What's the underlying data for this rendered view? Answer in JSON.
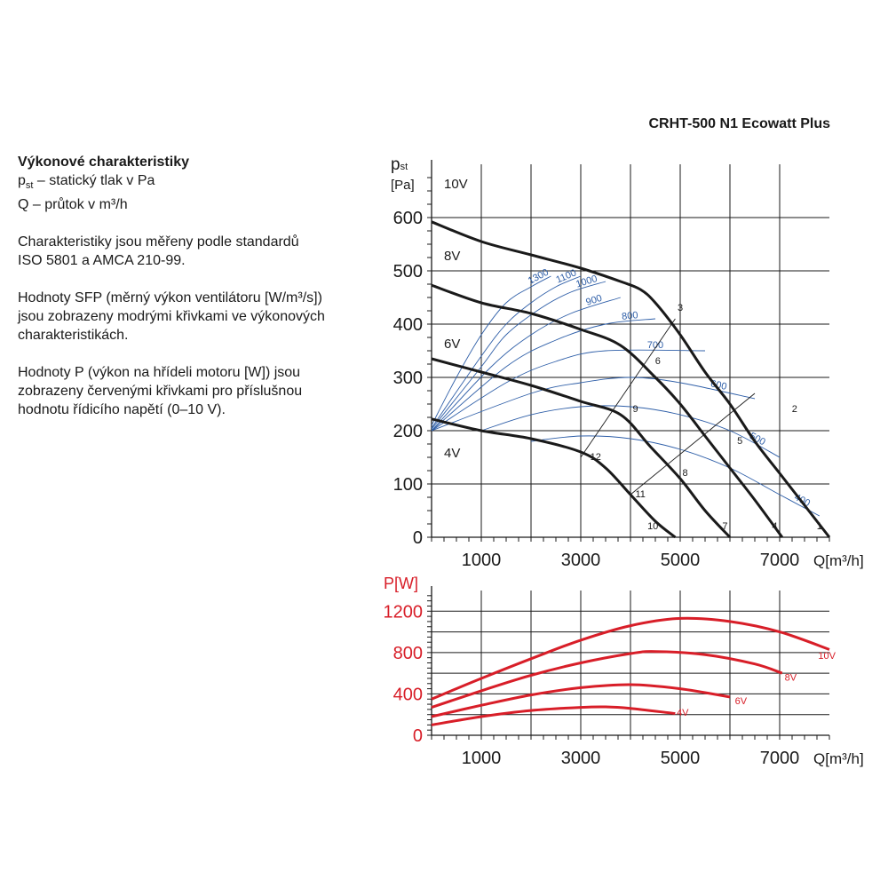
{
  "header": {
    "product_name": "CRHT-500 N1 Ecowatt Plus"
  },
  "description": {
    "title": "Výkonové charakteristiky",
    "pst_symbol": "p",
    "pst_sub": "st",
    "pst_text": " – statický tlak v Pa",
    "q_text": "Q – průtok v m³/h",
    "paragraph1_line1": "Charakteristiky jsou měřeny podle standardů",
    "paragraph1_line2": "ISO 5801 a AMCA 210-99.",
    "paragraph2_line1": "Hodnoty SFP (měrný výkon ventilátoru [W/m³/s])",
    "paragraph2_line2": "jsou zobrazeny modrými křivkami ve výkonových",
    "paragraph2_line3": "charakteristikách.",
    "paragraph3_line1": "Hodnoty P (výkon na hřídeli motoru [W]) jsou",
    "paragraph3_line2": "zobrazeny červenými křivkami pro příslušnou",
    "paragraph3_line3": "hodnotu řídicího napětí (0–10 V)."
  },
  "colors": {
    "pressure_curve": "#1a1a1a",
    "sfp_curve": "#2f5fa8",
    "power_curve": "#d81e28",
    "grid": "#1a1a1a"
  },
  "chart_data": [
    {
      "type": "line",
      "name": "pressure",
      "ylabel_symbol": "p",
      "ylabel_sub": "st",
      "yunit": "[Pa]",
      "xlabel": "Q[m³/h]",
      "xlim": [
        0,
        8000
      ],
      "ylim": [
        0,
        700
      ],
      "x_ticks": [
        1000,
        3000,
        5000,
        7000
      ],
      "y_ticks": [
        0,
        100,
        200,
        300,
        400,
        500,
        600
      ],
      "grid": true,
      "series": [
        {
          "name": "10V",
          "points": [
            [
              0,
              592
            ],
            [
              1000,
              555
            ],
            [
              2000,
              530
            ],
            [
              3000,
              505
            ],
            [
              3800,
              480
            ],
            [
              4200,
              465
            ],
            [
              4500,
              440
            ],
            [
              5000,
              380
            ],
            [
              5500,
              310
            ],
            [
              6000,
              250
            ],
            [
              6500,
              180
            ],
            [
              7000,
              120
            ],
            [
              7500,
              60
            ],
            [
              8000,
              0
            ]
          ]
        },
        {
          "name": "8V",
          "points": [
            [
              0,
              473
            ],
            [
              1000,
              440
            ],
            [
              2000,
              420
            ],
            [
              3000,
              390
            ],
            [
              3800,
              360
            ],
            [
              4500,
              300
            ],
            [
              5000,
              250
            ],
            [
              5500,
              190
            ],
            [
              6000,
              130
            ],
            [
              6500,
              70
            ],
            [
              7050,
              0
            ]
          ]
        },
        {
          "name": "6V",
          "points": [
            [
              0,
              335
            ],
            [
              1000,
              310
            ],
            [
              2000,
              285
            ],
            [
              3000,
              255
            ],
            [
              3800,
              230
            ],
            [
              4400,
              170
            ],
            [
              5000,
              110
            ],
            [
              5500,
              50
            ],
            [
              6000,
              0
            ]
          ]
        },
        {
          "name": "4V",
          "points": [
            [
              0,
              222
            ],
            [
              1000,
              200
            ],
            [
              2000,
              185
            ],
            [
              3000,
              160
            ],
            [
              3500,
              130
            ],
            [
              4000,
              80
            ],
            [
              4500,
              30
            ],
            [
              4900,
              0
            ]
          ]
        }
      ],
      "sfp_lines": [
        {
          "label": "1300",
          "points": [
            [
              0,
              210
            ],
            [
              500,
              300
            ],
            [
              1000,
              380
            ],
            [
              1500,
              440
            ],
            [
              2000,
              470
            ],
            [
              2400,
              490
            ]
          ]
        },
        {
          "label": "1100",
          "points": [
            [
              0,
              205
            ],
            [
              1000,
              340
            ],
            [
              1500,
              400
            ],
            [
              2000,
              440
            ],
            [
              2500,
              470
            ],
            [
              3000,
              490
            ]
          ]
        },
        {
          "label": "1000",
          "points": [
            [
              0,
              203
            ],
            [
              1000,
              320
            ],
            [
              1500,
              380
            ],
            [
              2200,
              430
            ],
            [
              2800,
              460
            ],
            [
              3500,
              480
            ]
          ]
        },
        {
          "label": "900",
          "points": [
            [
              0,
              200
            ],
            [
              1200,
              320
            ],
            [
              2000,
              380
            ],
            [
              2800,
              420
            ],
            [
              3800,
              450
            ]
          ]
        },
        {
          "label": "800",
          "points": [
            [
              0,
              200
            ],
            [
              1500,
              320
            ],
            [
              2500,
              370
            ],
            [
              3500,
              400
            ],
            [
              4500,
              410
            ]
          ]
        },
        {
          "label": "700",
          "points": [
            [
              0,
              200
            ],
            [
              1500,
              290
            ],
            [
              2500,
              330
            ],
            [
              3500,
              350
            ],
            [
              5500,
              350
            ]
          ]
        },
        {
          "label": "600",
          "points": [
            [
              0,
              200
            ],
            [
              2000,
              270
            ],
            [
              3000,
              290
            ],
            [
              4000,
              300
            ],
            [
              5000,
              290
            ],
            [
              6500,
              260
            ]
          ]
        },
        {
          "label": "500",
          "points": [
            [
              1000,
              200
            ],
            [
              2000,
              230
            ],
            [
              3000,
              245
            ],
            [
              4000,
              245
            ],
            [
              5000,
              230
            ],
            [
              6000,
              200
            ],
            [
              7000,
              150
            ]
          ]
        },
        {
          "label": "400",
          "points": [
            [
              2000,
              180
            ],
            [
              3000,
              190
            ],
            [
              4000,
              185
            ],
            [
              5000,
              165
            ],
            [
              6000,
              130
            ],
            [
              7000,
              80
            ],
            [
              7800,
              40
            ]
          ]
        }
      ],
      "system_lines": [
        {
          "points": [
            [
              3000,
              150
            ],
            [
              4900,
              410
            ]
          ]
        },
        {
          "points": [
            [
              4000,
              80
            ],
            [
              6500,
              270
            ]
          ]
        }
      ],
      "curve_labels": [
        {
          "text": "10V",
          "q": 250,
          "p": 655
        },
        {
          "text": "8V",
          "q": 250,
          "p": 520
        },
        {
          "text": "6V",
          "q": 250,
          "p": 355
        },
        {
          "text": "4V",
          "q": 250,
          "p": 150
        }
      ],
      "point_labels": [
        {
          "text": "1",
          "q": 7800,
          "p": 15
        },
        {
          "text": "2",
          "q": 7300,
          "p": 235
        },
        {
          "text": "3",
          "q": 5000,
          "p": 425
        },
        {
          "text": "4",
          "q": 6900,
          "p": 15
        },
        {
          "text": "5",
          "q": 6200,
          "p": 175
        },
        {
          "text": "6",
          "q": 4550,
          "p": 325
        },
        {
          "text": "7",
          "q": 5900,
          "p": 15
        },
        {
          "text": "8",
          "q": 5100,
          "p": 115
        },
        {
          "text": "9",
          "q": 4100,
          "p": 235
        },
        {
          "text": "10",
          "q": 4450,
          "p": 15
        },
        {
          "text": "11",
          "q": 4200,
          "p": 75
        },
        {
          "text": "12",
          "q": 3300,
          "p": 145
        }
      ]
    },
    {
      "type": "line",
      "name": "power",
      "ylabel": "P[W]",
      "xlabel": "Q[m³/h]",
      "xlim": [
        0,
        8000
      ],
      "ylim": [
        0,
        1400
      ],
      "x_ticks": [
        1000,
        3000,
        5000,
        7000
      ],
      "y_ticks": [
        0,
        400,
        800,
        1200
      ],
      "grid": true,
      "series": [
        {
          "name": "10V",
          "points": [
            [
              0,
              350
            ],
            [
              1000,
              550
            ],
            [
              2000,
              740
            ],
            [
              3000,
              920
            ],
            [
              4000,
              1060
            ],
            [
              5000,
              1130
            ],
            [
              6000,
              1100
            ],
            [
              7000,
              1000
            ],
            [
              8000,
              830
            ]
          ]
        },
        {
          "name": "8V",
          "points": [
            [
              0,
              270
            ],
            [
              1000,
              430
            ],
            [
              2000,
              580
            ],
            [
              3000,
              700
            ],
            [
              4000,
              790
            ],
            [
              4500,
              810
            ],
            [
              5500,
              780
            ],
            [
              6500,
              690
            ],
            [
              7050,
              600
            ]
          ]
        },
        {
          "name": "6V",
          "points": [
            [
              0,
              180
            ],
            [
              1000,
              290
            ],
            [
              2000,
              390
            ],
            [
              3000,
              460
            ],
            [
              4000,
              490
            ],
            [
              5000,
              450
            ],
            [
              6000,
              370
            ]
          ]
        },
        {
          "name": "4V",
          "points": [
            [
              0,
              100
            ],
            [
              1000,
              180
            ],
            [
              2000,
              240
            ],
            [
              3000,
              270
            ],
            [
              3500,
              275
            ],
            [
              4000,
              260
            ],
            [
              4900,
              210
            ]
          ]
        }
      ],
      "curve_labels": [
        {
          "text": "10V",
          "q": 7950,
          "p": 740
        },
        {
          "text": "8V",
          "q": 7220,
          "p": 530
        },
        {
          "text": "6V",
          "q": 6220,
          "p": 300
        },
        {
          "text": "4V",
          "q": 5050,
          "p": 190
        }
      ]
    }
  ]
}
